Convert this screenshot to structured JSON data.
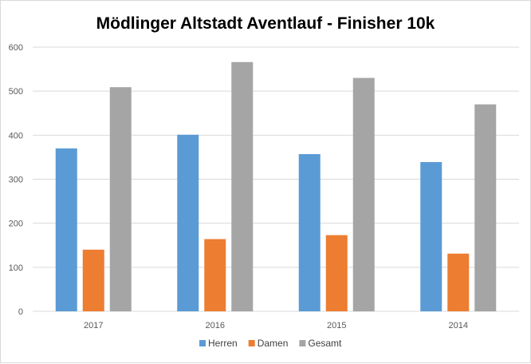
{
  "chart_data": {
    "type": "bar",
    "title": "Mödlinger Altstadt Aventlauf - Finisher 10k",
    "xlabel": "",
    "ylabel": "",
    "categories": [
      "2017",
      "2016",
      "2015",
      "2014"
    ],
    "series": [
      {
        "name": "Herren",
        "color": "#5b9bd5",
        "values": [
          370,
          401,
          357,
          339
        ]
      },
      {
        "name": "Damen",
        "color": "#ed7d31",
        "values": [
          140,
          164,
          173,
          131
        ]
      },
      {
        "name": "Gesamt",
        "color": "#a5a5a5",
        "values": [
          509,
          566,
          530,
          470
        ]
      }
    ],
    "ylim": [
      0,
      600
    ],
    "yticks": [
      0,
      100,
      200,
      300,
      400,
      500,
      600
    ],
    "grid": true,
    "gridline_color": "#d9d9d9",
    "legend_position": "bottom"
  }
}
